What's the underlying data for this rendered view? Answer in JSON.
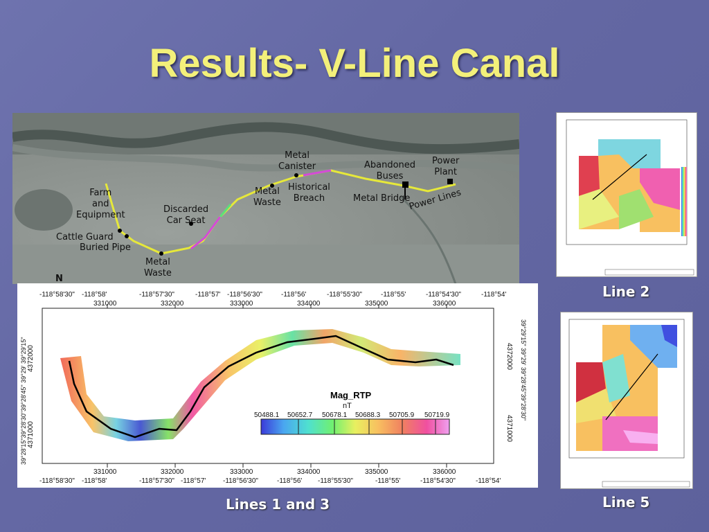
{
  "title": "Results- V-Line Canal",
  "captions": {
    "line2": "Line 2",
    "line5": "Line 5",
    "lines13": "Lines 1 and 3"
  },
  "photo_labels": {
    "farm": "Farm\nand\nEquipment",
    "cattle": "Cattle Guard",
    "pipe": "Buried Pipe",
    "metal_waste_low": "Metal\nWaste",
    "car_seat": "Discarded\nCar Seat",
    "metal_waste": "Metal\nWaste",
    "canister": "Metal\nCanister",
    "breach": "Historical\nBreach",
    "buses": "Abandoned\nBuses",
    "bridge": "Metal Bridge",
    "power_plant": "Power\nPlant",
    "power_lines": "Power Lines",
    "north": "N"
  },
  "map": {
    "top_lon": [
      "-118°58'30\"",
      "-118°58'",
      "-118°57'30\"",
      "-118°57'",
      "-118°56'30\"",
      "-118°56'",
      "-118°55'30\"",
      "-118°55'",
      "-118°54'30\"",
      "-118°54'"
    ],
    "bottom_lon": [
      "-118°58'30\"",
      "-118°58'",
      "-118°57'30\"",
      "-118°57'",
      "-118°56'30\"",
      "-118°56'",
      "-118°55'30\"",
      "-118°55'",
      "-118°54'30\"",
      "-118°54'"
    ],
    "easting": [
      "331000",
      "332000",
      "333000",
      "334000",
      "335000",
      "336000"
    ],
    "northing_left": [
      "4372000",
      "4371000"
    ],
    "northing_right": [
      "4372000",
      "4371000"
    ],
    "lat_left": "39°28'15\"39°28'30\"39°28'45\" 39°29' 39°29'15\"",
    "lat_right": "39°29'15\" 39°29' 39°28'45\"39°28'30\"",
    "legend_title": "Mag_RTP",
    "legend_unit": "nT",
    "legend_values": [
      "50488.1",
      "50652.7",
      "50678.1",
      "50688.3",
      "50705.9",
      "50719.9"
    ]
  }
}
